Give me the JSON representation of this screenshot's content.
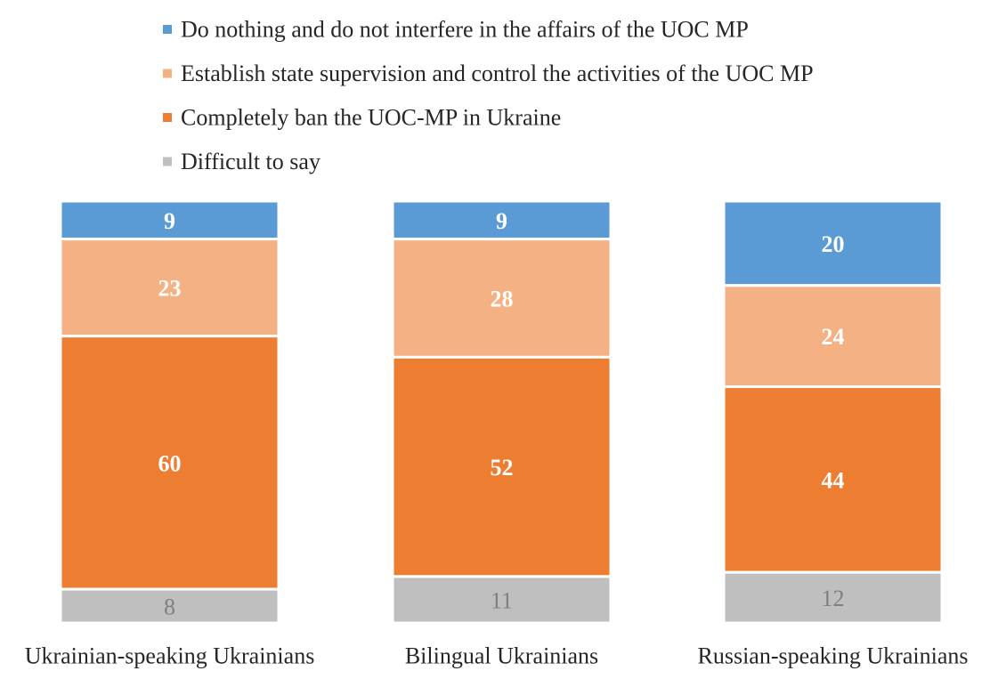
{
  "chart_data": {
    "type": "bar",
    "stacked": true,
    "orientation": "vertical",
    "normalized_to": 100,
    "categories": [
      "Ukrainian-speaking Ukrainians",
      "Bilingual Ukrainians",
      "Russian-speaking Ukrainians"
    ],
    "series": [
      {
        "name": "Do nothing and do not interfere in the affairs of the UOC MP",
        "values": [
          9,
          9,
          20
        ],
        "color": "#5b9bd5",
        "label_color": "#ffffff",
        "label_bold": true
      },
      {
        "name": "Establish state supervision and control the activities of the UOC MP",
        "values": [
          23,
          28,
          24
        ],
        "color": "#f4b183",
        "label_color": "#ffffff",
        "label_bold": true
      },
      {
        "name": "Completely ban the UOC-MP in Ukraine",
        "values": [
          60,
          52,
          44
        ],
        "color": "#ed7d31",
        "label_color": "#ffffff",
        "label_bold": true
      },
      {
        "name": "Difficult to say",
        "values": [
          8,
          11,
          12
        ],
        "color": "#bfbfbf",
        "label_color": "#7f7f7f",
        "label_bold": false
      }
    ],
    "legend_position": "top-center",
    "grid": false,
    "title": "",
    "xlabel": "",
    "ylabel": ""
  }
}
